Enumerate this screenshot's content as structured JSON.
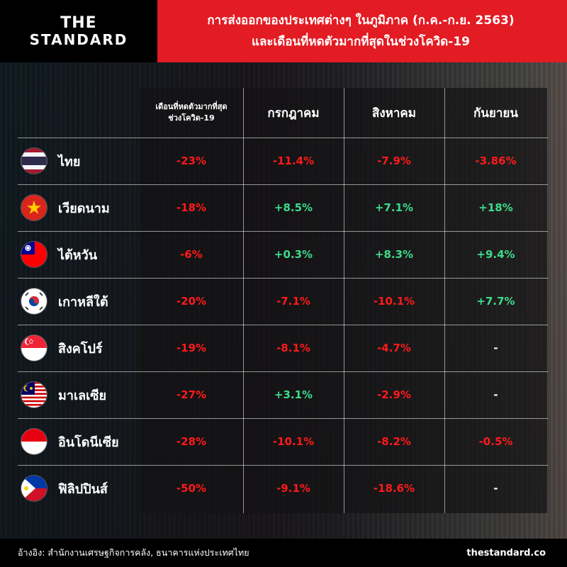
{
  "brand": {
    "line1": "THE",
    "line2": "STANDARD"
  },
  "header": {
    "title_line1": "การส่งออกของประเทศต่างๆ ในภูมิภาค (ก.ค.-ก.ย. 2563)",
    "title_line2": "และเดือนที่หดตัวมากที่สุดในช่วงโควิด-19"
  },
  "colors": {
    "header_red": "#e31b23",
    "negative": "#ff1a1a",
    "positive": "#3ddc8a"
  },
  "chart_data": {
    "type": "table",
    "columns": [
      "เดือนที่หดตัวมากที่สุดช่วงโควิด-19",
      "กรกฎาคม",
      "สิงหาคม",
      "กันยายน"
    ],
    "column_header_lines": [
      [
        "เดือนที่หดตัวมากที่สุด",
        "ช่วงโควิด-19"
      ],
      [
        "กรกฎาคม"
      ],
      [
        "สิงหาคม"
      ],
      [
        "กันยายน"
      ]
    ],
    "rows": [
      {
        "country": "ไทย",
        "flag": "thailand-flag-icon",
        "values": [
          "-23%",
          "-11.4%",
          "-7.9%",
          "-3.86%"
        ]
      },
      {
        "country": "เวียดนาม",
        "flag": "vietnam-flag-icon",
        "values": [
          "-18%",
          "+8.5%",
          "+7.1%",
          "+18%"
        ]
      },
      {
        "country": "ไต้หวัน",
        "flag": "taiwan-flag-icon",
        "values": [
          "-6%",
          "+0.3%",
          "+8.3%",
          "+9.4%"
        ]
      },
      {
        "country": "เกาหลีใต้",
        "flag": "south-korea-flag-icon",
        "values": [
          "-20%",
          "-7.1%",
          "-10.1%",
          "+7.7%"
        ]
      },
      {
        "country": "สิงคโปร์",
        "flag": "singapore-flag-icon",
        "values": [
          "-19%",
          "-8.1%",
          "-4.7%",
          "-"
        ]
      },
      {
        "country": "มาเลเซีย",
        "flag": "malaysia-flag-icon",
        "values": [
          "-27%",
          "+3.1%",
          "-2.9%",
          "-"
        ]
      },
      {
        "country": "อินโดนีเซีย",
        "flag": "indonesia-flag-icon",
        "values": [
          "-28%",
          "-10.1%",
          "-8.2%",
          "-0.5%"
        ]
      },
      {
        "country": "ฟิลิปปินส์",
        "flag": "philippines-flag-icon",
        "values": [
          "-50%",
          "-9.1%",
          "-18.6%",
          "-"
        ]
      }
    ]
  },
  "footer": {
    "source": "อ้างอิง: สำนักงานเศรษฐกิจการคลัง, ธนาคารแห่งประเทศไทย",
    "site": "thestandard.co"
  }
}
